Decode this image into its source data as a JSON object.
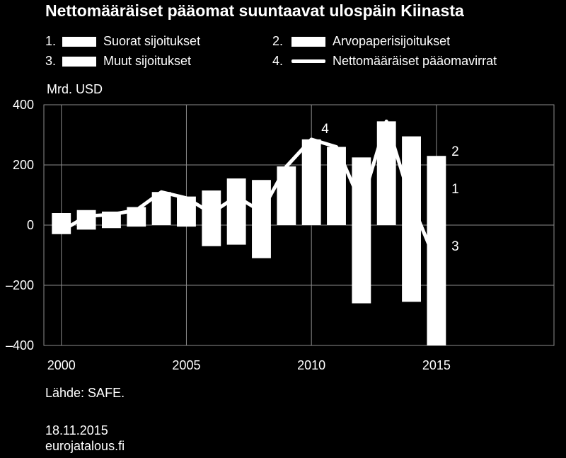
{
  "title": "Nettomääräiset pääomat suuntaavat ulospäin Kiinasta",
  "legend": [
    {
      "num": "1.",
      "label": "Suorat sijoitukset",
      "kind": "bar"
    },
    {
      "num": "2.",
      "label": "Arvopaperisijoitukset",
      "kind": "bar"
    },
    {
      "num": "3.",
      "label": "Muut sijoitukset",
      "kind": "bar"
    },
    {
      "num": "4.",
      "label": "Nettomääräiset pääomavirrat",
      "kind": "line"
    }
  ],
  "unit_label": "Mrd. USD",
  "source": "Lähde: SAFE.",
  "date": "18.11.2015",
  "site": "eurojatalous.fi",
  "colors": {
    "background": "#000000",
    "foreground": "#ffffff",
    "grid": "#8c8c8c"
  },
  "chart_data": {
    "type": "bar",
    "title": "Nettomääräiset pääomat suuntaavat ulospäin Kiinasta",
    "ylabel": "Mrd. USD",
    "ylim": [
      -400,
      400
    ],
    "yticks": [
      400,
      200,
      0,
      -200,
      -400
    ],
    "ytick_labels": [
      "400",
      "200",
      "0",
      "–200",
      "–400"
    ],
    "xlim": [
      1999.3,
      2019.7
    ],
    "xticks": [
      2000,
      2005,
      2010,
      2015
    ],
    "xtick_labels": [
      "2000",
      "2005",
      "2010",
      "2015"
    ],
    "grid": true,
    "legend_position": "top",
    "years": [
      2000,
      2001,
      2002,
      2003,
      2004,
      2005,
      2006,
      2007,
      2008,
      2009,
      2010,
      2011,
      2012,
      2013,
      2014,
      2015
    ],
    "bars_positive_total": [
      40,
      50,
      45,
      60,
      110,
      95,
      115,
      155,
      150,
      195,
      285,
      260,
      225,
      345,
      295,
      230
    ],
    "bars_negative_total": [
      -30,
      -15,
      -10,
      -5,
      0,
      -5,
      -70,
      -65,
      -110,
      0,
      0,
      0,
      -260,
      0,
      -255,
      -400
    ],
    "series": [
      {
        "name": "Nettomääräiset pääomavirrat",
        "type": "line",
        "x": [
          2000,
          2001,
          2002,
          2003,
          2004,
          2005,
          2006,
          2007,
          2008,
          2009,
          2010,
          2011,
          2012,
          2013,
          2014,
          2015
        ],
        "values": [
          -20,
          30,
          35,
          50,
          110,
          90,
          40,
          95,
          45,
          195,
          285,
          260,
          70,
          345,
          75,
          -125
        ]
      }
    ],
    "annotations": [
      {
        "text": "4",
        "x": 2010.4,
        "y": 320
      },
      {
        "text": "2",
        "x": 2015.6,
        "y": 245
      },
      {
        "text": "1",
        "x": 2015.6,
        "y": 120
      },
      {
        "text": "3",
        "x": 2015.6,
        "y": -70
      }
    ]
  }
}
